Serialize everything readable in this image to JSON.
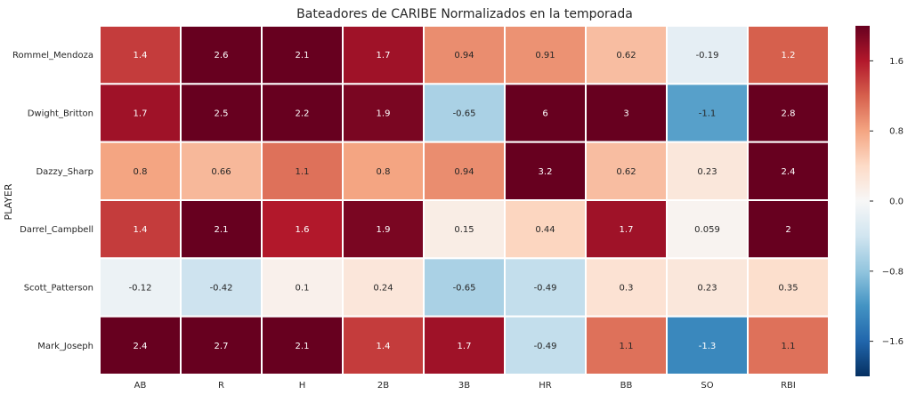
{
  "chart_data": {
    "type": "heatmap",
    "title": "Bateadores de CARIBE Normalizados en la temporada",
    "xlabel": "",
    "ylabel": "PLAYER",
    "x_categories": [
      "AB",
      "R",
      "H",
      "2B",
      "3B",
      "HR",
      "BB",
      "SO",
      "RBI"
    ],
    "y_categories": [
      "Rommel_Mendoza",
      "Dwight_Britton",
      "Dazzy_Sharp",
      "Darrel_Campbell",
      "Scott_Patterson",
      "Mark_Joseph"
    ],
    "values": [
      [
        1.4,
        2.6,
        2.1,
        1.7,
        0.94,
        0.91,
        0.62,
        -0.19,
        1.2
      ],
      [
        1.7,
        2.5,
        2.2,
        1.9,
        -0.65,
        6,
        3,
        -1.1,
        2.8
      ],
      [
        0.8,
        0.66,
        1.1,
        0.8,
        0.94,
        3.2,
        0.62,
        0.23,
        2.4
      ],
      [
        1.4,
        2.1,
        1.6,
        1.9,
        0.15,
        0.44,
        1.7,
        0.059,
        2
      ],
      [
        -0.12,
        -0.42,
        0.1,
        0.24,
        -0.65,
        -0.49,
        0.3,
        0.23,
        0.35
      ],
      [
        2.4,
        2.7,
        2.1,
        1.4,
        1.7,
        -0.49,
        1.1,
        -1.3,
        1.1
      ]
    ],
    "color_range": [
      -2,
      2
    ],
    "colormap": "RdBu_r",
    "colorbar_ticks": [
      "1.6",
      "0.8",
      "0.0",
      "−0.8",
      "−1.6"
    ],
    "colorbar_tick_values": [
      1.6,
      0.8,
      0.0,
      -0.8,
      -1.6
    ]
  }
}
